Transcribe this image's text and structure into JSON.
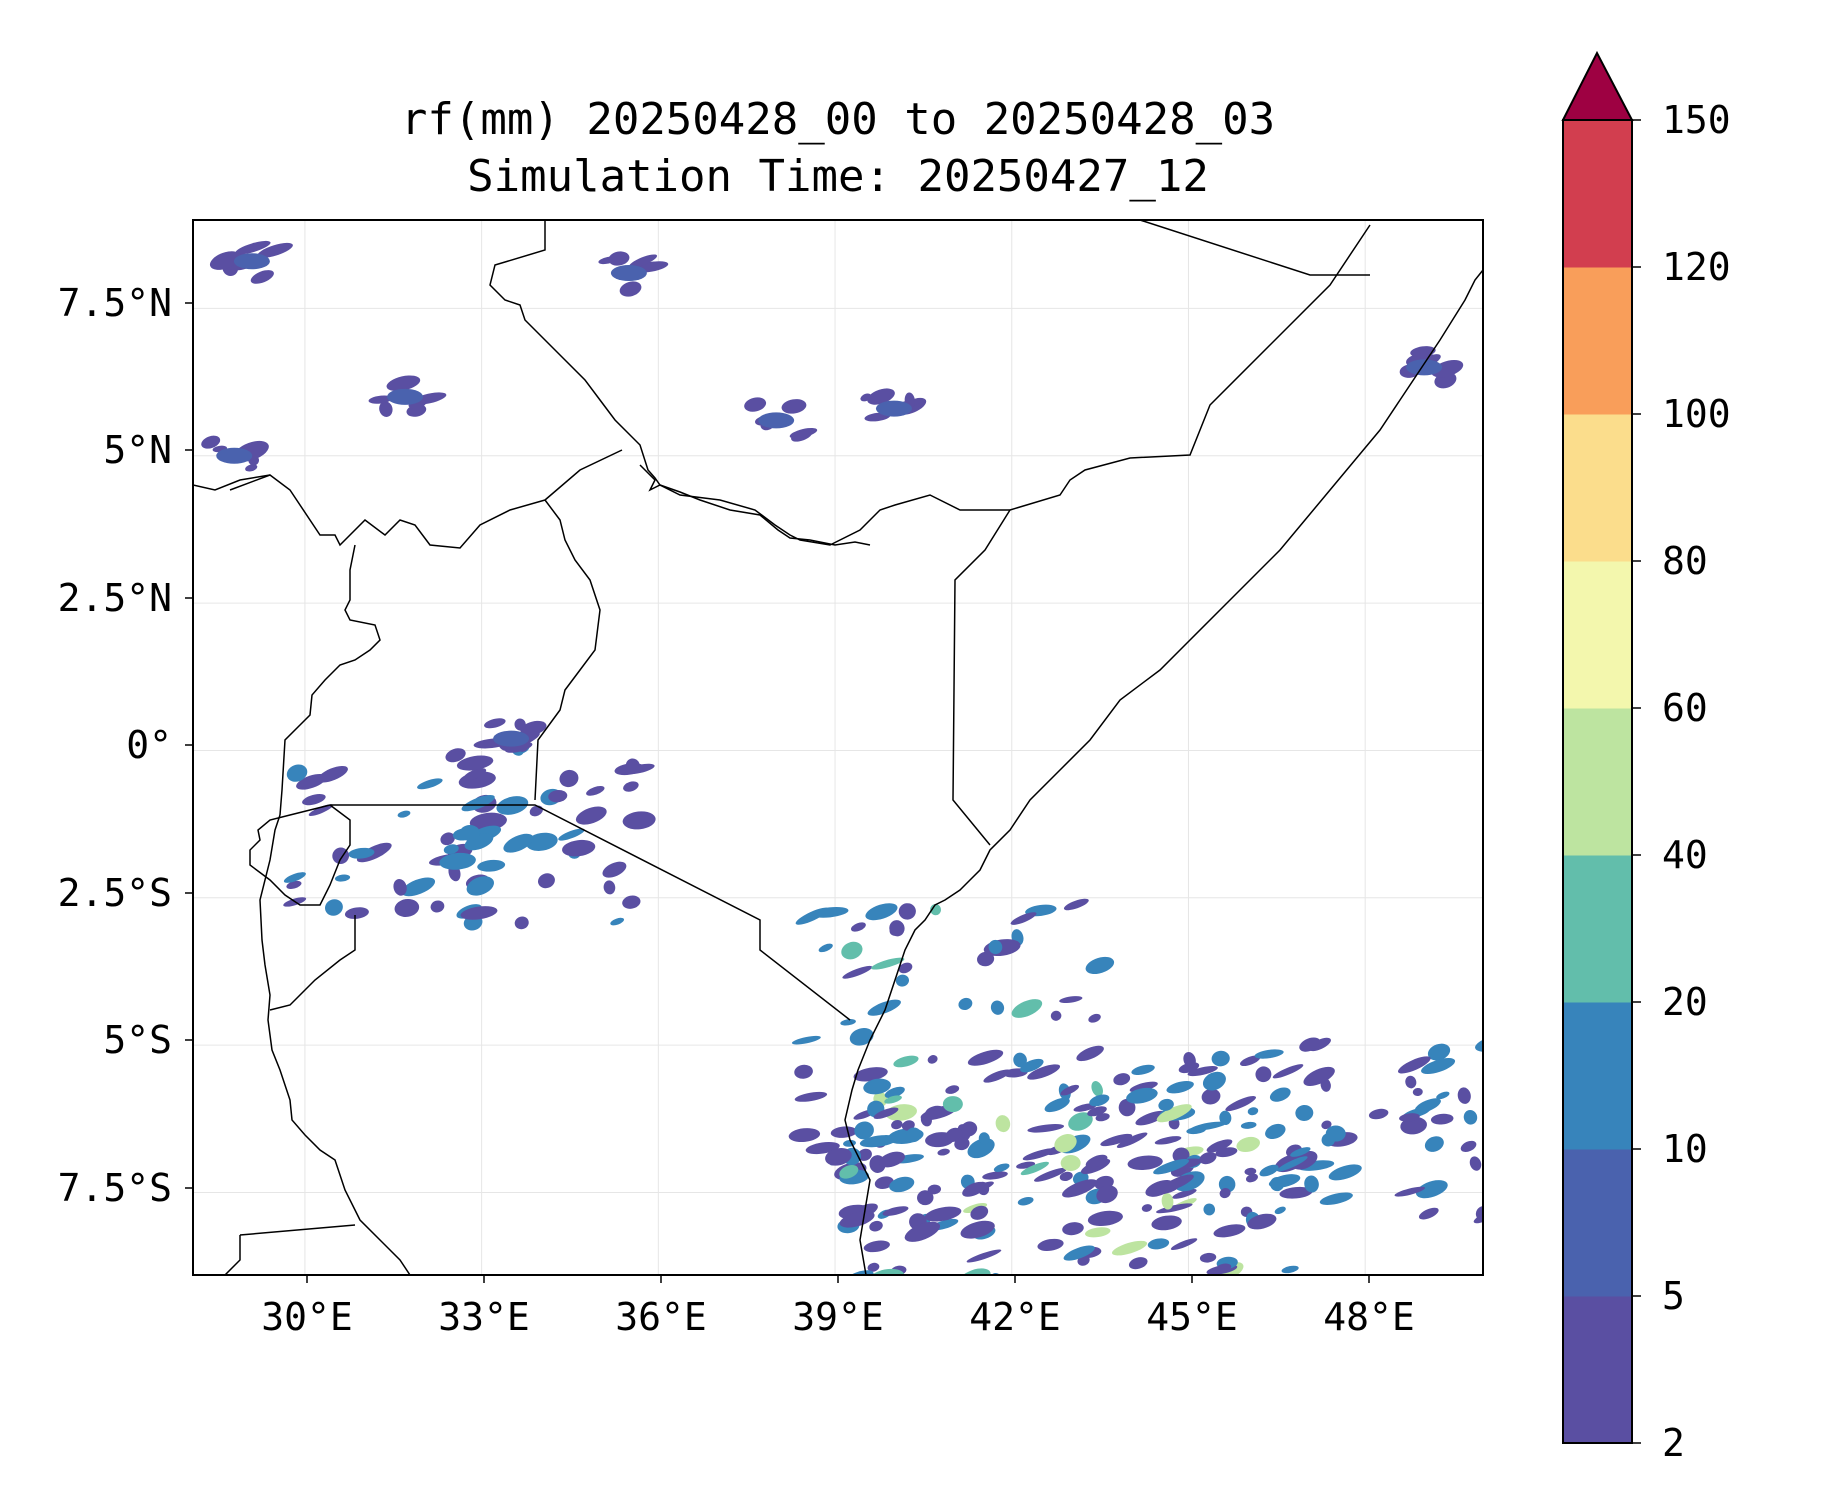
{
  "title": {
    "line1": "rf(mm) 20250428_00 to 20250428_03",
    "line2": "Simulation Time: 20250427_12"
  },
  "axes": {
    "x_ticks": [
      "30°E",
      "33°E",
      "36°E",
      "39°E",
      "42°E",
      "45°E",
      "48°E"
    ],
    "y_ticks": [
      "7.5°N",
      "5°N",
      "2.5°N",
      "0°",
      "2.5°S",
      "5°S",
      "7.5°S"
    ],
    "lon_range": [
      28.1,
      50.0
    ],
    "lat_range": [
      -8.9,
      9.0
    ],
    "grid": true
  },
  "colorbar": {
    "levels": [
      2,
      5,
      10,
      20,
      40,
      60,
      80,
      100,
      120,
      150
    ],
    "labels": [
      "2",
      "5",
      "10",
      "20",
      "40",
      "60",
      "80",
      "100",
      "120",
      "150"
    ],
    "colors": [
      "#5a4fa2",
      "#4a62ae",
      "#3784bb",
      "#62beab",
      "#bde4a0",
      "#f3f7ad",
      "#fbdd8c",
      "#f99e5a",
      "#d23e4f",
      "#9e0142"
    ],
    "extend": "max"
  },
  "chart_data": {
    "type": "heatmap",
    "variable": "rf(mm)",
    "period": [
      "20250428_00",
      "20250428_03"
    ],
    "simulation_time": "20250427_12",
    "x_range": [
      28.1,
      50.0
    ],
    "y_range": [
      -8.9,
      9.0
    ],
    "rain_areas": [
      {
        "lon": 43.0,
        "lat": -7.0,
        "max_level": 40
      },
      {
        "lon": 41.0,
        "lat": -6.0,
        "max_level": 20
      },
      {
        "lon": 47.5,
        "lat": -6.5,
        "max_level": 10
      },
      {
        "lon": 32.8,
        "lat": -1.4,
        "max_level": 10
      },
      {
        "lon": 33.5,
        "lat": 0.2,
        "max_level": 5
      },
      {
        "lon": 31.7,
        "lat": 6.0,
        "max_level": 5
      },
      {
        "lon": 29.1,
        "lat": 8.3,
        "max_level": 5
      },
      {
        "lon": 28.8,
        "lat": 5.0,
        "max_level": 5
      },
      {
        "lon": 38.0,
        "lat": 5.6,
        "max_level": 5
      },
      {
        "lon": 40.0,
        "lat": 5.8,
        "max_level": 5
      },
      {
        "lon": 49.0,
        "lat": 6.5,
        "max_level": 5
      },
      {
        "lon": 35.5,
        "lat": 8.1,
        "max_level": 5
      }
    ]
  }
}
